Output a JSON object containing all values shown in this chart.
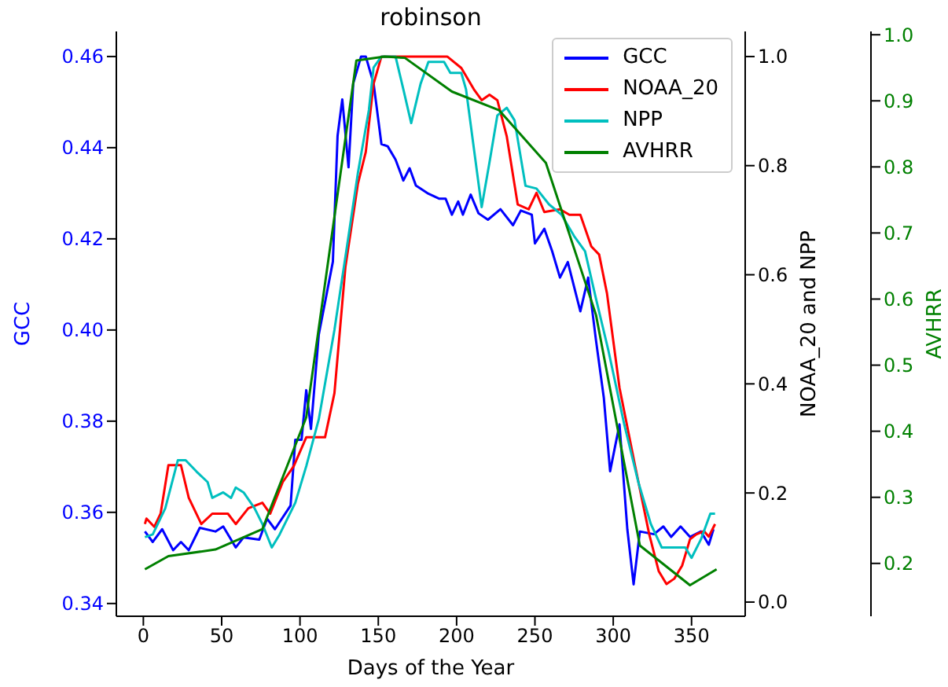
{
  "chart_data": {
    "type": "line",
    "title": "robinson",
    "xlabel": "Days of the Year",
    "ylabel": "GCC",
    "y2label": "NOAA_20 and NPP",
    "y3label": "AVHRR",
    "xlim": [
      -17.25,
      384.25
    ],
    "xticks": [
      0,
      50,
      100,
      150,
      200,
      250,
      300,
      350
    ],
    "ylim": [
      0.3372,
      0.4655
    ],
    "yticks": [
      {
        "value": 0.34,
        "label": "0.34"
      },
      {
        "value": 0.36,
        "label": "0.36"
      },
      {
        "value": 0.38,
        "label": "0.38"
      },
      {
        "value": 0.4,
        "label": "0.40"
      },
      {
        "value": 0.42,
        "label": "0.42"
      },
      {
        "value": 0.44,
        "label": "0.44"
      },
      {
        "value": 0.46,
        "label": "0.46"
      }
    ],
    "y2lim": [
      -0.026,
      1.046
    ],
    "y2ticks": [
      {
        "value": 0,
        "label": "0.0"
      },
      0.2,
      0.4,
      0.6,
      0.8,
      {
        "value": 1,
        "label": "1.0"
      }
    ],
    "y3lim": [
      0.12,
      1.005
    ],
    "y3ticks": [
      0.2,
      0.3,
      0.4,
      0.5,
      0.6,
      0.7,
      0.8,
      0.9,
      {
        "value": 1,
        "label": "1.0"
      }
    ],
    "grid": false,
    "legend": "top right",
    "marker": "none",
    "line_style": "solid",
    "series": [
      {
        "name": "GCC",
        "color": "#0000ff",
        "x": [
          1,
          6,
          12,
          19,
          24,
          29,
          36,
          46,
          51,
          59,
          64,
          74,
          79,
          84,
          94,
          97,
          101,
          104,
          107,
          112,
          121,
          124,
          127,
          131,
          134,
          139,
          142,
          147,
          152,
          156,
          161,
          166,
          170,
          174,
          182,
          189,
          193,
          197,
          201,
          204,
          209,
          214,
          220,
          228,
          236,
          241,
          248,
          250,
          256,
          261,
          266,
          271,
          279,
          284,
          289,
          294,
          298,
          304,
          309,
          313,
          317,
          326,
          332,
          337,
          343,
          349,
          356,
          361,
          364
        ],
        "values": [
          0.3558,
          0.3535,
          0.3563,
          0.3517,
          0.3535,
          0.3517,
          0.3566,
          0.3558,
          0.3569,
          0.3523,
          0.3545,
          0.354,
          0.3586,
          0.3563,
          0.3615,
          0.3759,
          0.3759,
          0.3868,
          0.3783,
          0.399,
          0.415,
          0.4426,
          0.4506,
          0.4357,
          0.4541,
          0.46,
          0.46,
          0.4541,
          0.4408,
          0.4403,
          0.4374,
          0.4328,
          0.4355,
          0.4317,
          0.4299,
          0.4288,
          0.4288,
          0.4253,
          0.4282,
          0.4253,
          0.4297,
          0.4256,
          0.4242,
          0.4265,
          0.423,
          0.4262,
          0.4253,
          0.419,
          0.4222,
          0.4173,
          0.4115,
          0.4149,
          0.4041,
          0.4115,
          0.3977,
          0.3851,
          0.369,
          0.3793,
          0.3563,
          0.3442,
          0.3558,
          0.3552,
          0.3569,
          0.3546,
          0.3569,
          0.3546,
          0.3558,
          0.3529,
          0.3563
        ]
      },
      {
        "name": "NOAA_20",
        "color": "#ff0000",
        "axis": "y2",
        "x": [
          1,
          2,
          7,
          11,
          16,
          24,
          29,
          37,
          44,
          54,
          59,
          67,
          76,
          81,
          89,
          96,
          104,
          109,
          116,
          122,
          129,
          137,
          142,
          147,
          152,
          179,
          194,
          203,
          211,
          216,
          221,
          226,
          232,
          239,
          246,
          251,
          256,
          266,
          272,
          279,
          286,
          291,
          296,
          304,
          314,
          323,
          329,
          334,
          339,
          344,
          349,
          353,
          358,
          361,
          365
        ],
        "values": [
          0.143,
          0.153,
          0.138,
          0.162,
          0.251,
          0.251,
          0.191,
          0.143,
          0.162,
          0.162,
          0.143,
          0.172,
          0.182,
          0.162,
          0.22,
          0.249,
          0.302,
          0.302,
          0.302,
          0.383,
          0.614,
          0.767,
          0.825,
          0.95,
          1.0,
          1.0,
          1.0,
          0.979,
          0.94,
          0.92,
          0.93,
          0.92,
          0.854,
          0.729,
          0.72,
          0.75,
          0.715,
          0.72,
          0.71,
          0.71,
          0.652,
          0.637,
          0.566,
          0.393,
          0.249,
          0.124,
          0.057,
          0.033,
          0.043,
          0.067,
          0.115,
          0.124,
          0.13,
          0.12,
          0.143
        ]
      },
      {
        "name": "NPP",
        "color": "#00bfbf",
        "axis": "y2",
        "x": [
          1,
          6,
          14,
          22,
          27,
          34,
          41,
          44,
          51,
          56,
          59,
          64,
          71,
          76,
          82,
          87,
          97,
          104,
          112,
          122,
          131,
          137,
          144,
          147,
          152,
          161,
          166,
          171,
          177,
          182,
          192,
          196,
          203,
          206,
          216,
          221,
          226,
          232,
          237,
          244,
          251,
          259,
          267,
          275,
          282,
          289,
          297,
          307,
          316,
          324,
          331,
          339,
          346,
          350,
          356,
          362,
          365
        ],
        "values": [
          0.119,
          0.124,
          0.172,
          0.26,
          0.26,
          0.239,
          0.22,
          0.191,
          0.201,
          0.191,
          0.21,
          0.201,
          0.172,
          0.143,
          0.1,
          0.124,
          0.182,
          0.249,
          0.335,
          0.499,
          0.671,
          0.787,
          0.902,
          0.98,
          1.0,
          1.0,
          0.94,
          0.878,
          0.95,
          0.99,
          0.99,
          0.97,
          0.97,
          0.94,
          0.724,
          0.806,
          0.892,
          0.906,
          0.883,
          0.763,
          0.758,
          0.729,
          0.71,
          0.671,
          0.643,
          0.556,
          0.46,
          0.326,
          0.22,
          0.143,
          0.1,
          0.1,
          0.1,
          0.081,
          0.115,
          0.162,
          0.162
        ]
      },
      {
        "name": "AVHRR",
        "color": "#008000",
        "axis": "y3",
        "x": [
          1,
          16,
          46,
          76,
          104,
          136,
          154,
          167,
          197,
          227,
          257,
          289,
          317,
          349,
          366
        ],
        "values": [
          0.191,
          0.211,
          0.221,
          0.252,
          0.421,
          0.961,
          0.967,
          0.965,
          0.914,
          0.886,
          0.806,
          0.576,
          0.227,
          0.167,
          0.191
        ]
      }
    ]
  }
}
